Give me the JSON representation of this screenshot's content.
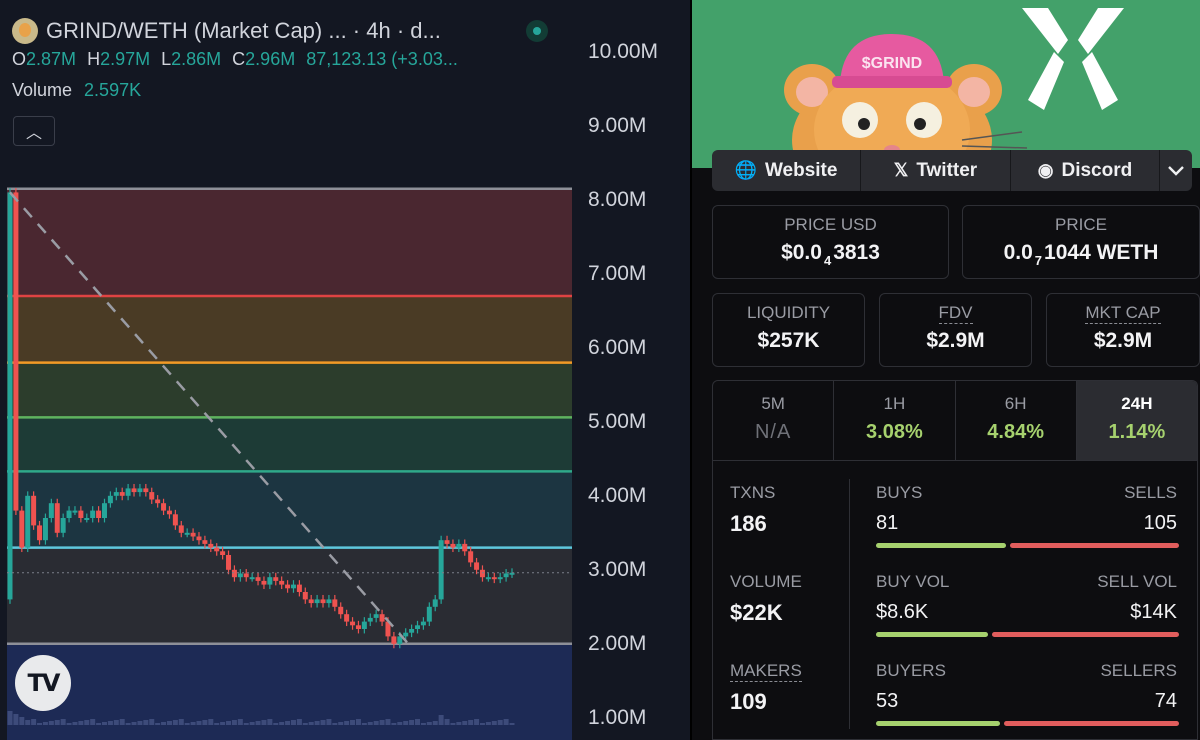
{
  "header": {
    "pair_title": "GRIND/WETH (Market Cap) ...   · 4h · d...",
    "ohlc": {
      "o_label": "O",
      "o": "2.87M",
      "h_label": "H",
      "h": "2.97M",
      "l_label": "L",
      "l": "2.86M",
      "c_label": "C",
      "c": "2.96M",
      "change": "87,123.13 (+3.03..."
    },
    "volume_label": "Volume",
    "volume_value": "2.597K",
    "collapse_icon": "chevron-up-icon"
  },
  "chart_data": {
    "type": "candlestick",
    "y_axis_labels": [
      "10.00M",
      "9.00M",
      "8.00M",
      "7.00M",
      "6.00M",
      "5.00M",
      "4.00M",
      "3.00M",
      "2.00M",
      "1.00M"
    ],
    "ylim": [
      0.7,
      10.7
    ],
    "levels": [
      {
        "value": 8.15,
        "color": "#8e9098"
      },
      {
        "value": 6.7,
        "color": "#e04343"
      },
      {
        "value": 5.8,
        "color": "#f29a26"
      },
      {
        "value": 5.06,
        "color": "#5fb35f"
      },
      {
        "value": 4.33,
        "color": "#2fa98a"
      },
      {
        "value": 3.3,
        "color": "#5ec8dd"
      },
      {
        "value": 2.0,
        "color": "#8e9098"
      }
    ],
    "bands": [
      {
        "from": 8.15,
        "to": 6.7,
        "color": "#4a2730"
      },
      {
        "from": 6.7,
        "to": 5.8,
        "color": "#4a3b25"
      },
      {
        "from": 5.8,
        "to": 5.06,
        "color": "#2c3d2c"
      },
      {
        "from": 5.06,
        "to": 4.33,
        "color": "#1d3b36"
      },
      {
        "from": 4.33,
        "to": 3.3,
        "color": "#1c3541"
      },
      {
        "from": 3.3,
        "to": 2.0,
        "color": "#2a2c33"
      },
      {
        "from": 2.0,
        "to": 0.7,
        "color": "#1d2a55"
      }
    ],
    "current_price": 2.96,
    "trend_line": {
      "from": [
        0,
        8.1
      ],
      "to": [
        68,
        1.95
      ]
    },
    "series": [
      {
        "name": "price",
        "values": [
          8.1,
          3.8,
          3.3,
          4.0,
          3.6,
          3.4,
          3.7,
          3.9,
          3.5,
          3.7,
          3.8,
          3.8,
          3.7,
          3.7,
          3.8,
          3.7,
          3.9,
          4.0,
          4.05,
          4.0,
          4.1,
          4.05,
          4.1,
          4.05,
          3.95,
          3.9,
          3.8,
          3.75,
          3.6,
          3.5,
          3.5,
          3.45,
          3.4,
          3.35,
          3.3,
          3.25,
          3.2,
          3.0,
          2.9,
          2.95,
          2.9,
          2.9,
          2.85,
          2.8,
          2.9,
          2.85,
          2.8,
          2.75,
          2.8,
          2.7,
          2.6,
          2.55,
          2.6,
          2.55,
          2.6,
          2.5,
          2.4,
          2.3,
          2.25,
          2.2,
          2.3,
          2.35,
          2.4,
          2.3,
          2.1,
          2.0,
          2.1,
          2.15,
          2.2,
          2.25,
          2.3,
          2.5,
          2.6,
          3.4,
          3.35,
          3.3,
          3.35,
          3.25,
          3.1,
          3.0,
          2.9,
          2.9,
          2.88,
          2.9,
          2.95,
          2.96
        ]
      }
    ]
  },
  "branding": {
    "logo": "tradingview-logo",
    "logo_text": "TV"
  },
  "banner": {
    "hat_text": "$GRIND"
  },
  "links": [
    {
      "label": "Website",
      "icon": "globe-icon",
      "glyph": "🌐"
    },
    {
      "label": "Twitter",
      "icon": "x-icon",
      "glyph": "𝕏"
    },
    {
      "label": "Discord",
      "icon": "discord-icon",
      "glyph": "◉"
    }
  ],
  "more_icon": "chevron-down-icon",
  "prices": {
    "usd_label": "PRICE USD",
    "usd_main": "$0.0",
    "usd_sub": "4",
    "usd_rest": "3813",
    "native_label": "PRICE",
    "native_main": "0.0",
    "native_sub": "7",
    "native_rest": "1044 WETH"
  },
  "metrics": [
    {
      "label": "LIQUIDITY",
      "value": "$257K"
    },
    {
      "label": "FDV",
      "value": "$2.9M"
    },
    {
      "label": "MKT CAP",
      "value": "$2.9M"
    }
  ],
  "timeframes": [
    {
      "label": "5M",
      "value": "N/A"
    },
    {
      "label": "1H",
      "value": "3.08%"
    },
    {
      "label": "6H",
      "value": "4.84%"
    },
    {
      "label": "24H",
      "value": "1.14%"
    }
  ],
  "active_timeframe": "24H",
  "stats": {
    "txns_label": "TXNS",
    "txns": "186",
    "volume_label": "VOLUME",
    "volume": "$22K",
    "makers_label": "MAKERS",
    "makers": "109",
    "buys_label": "BUYS",
    "buys": "81",
    "sells_label": "SELLS",
    "sells": "105",
    "buy_vol_label": "BUY VOL",
    "buy_vol": "$8.6K",
    "sell_vol_label": "SELL VOL",
    "sell_vol": "$14K",
    "buyers_label": "BUYERS",
    "buyers": "53",
    "sellers_label": "SELLERS",
    "sellers": "74"
  },
  "colors": {
    "up": "#26a69a",
    "down": "#ef5350",
    "accent_green": "#a6d16e",
    "accent_red": "#e15d5d"
  }
}
